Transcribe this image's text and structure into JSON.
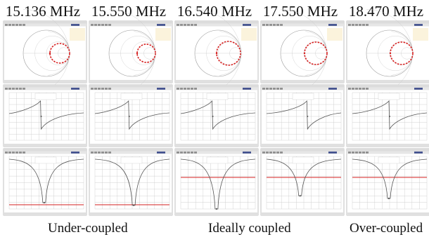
{
  "frequencies": [
    "15.136 MHz",
    "15.550 MHz",
    "16.540 MHz",
    "17.550 MHz",
    "18.470 MHz"
  ],
  "captions": {
    "under": "Under-coupled",
    "ideal": "Ideally coupled",
    "over": "Over-coupled"
  },
  "colors": {
    "window_bg": "#ffffff",
    "title_bar": "#dcdcdc",
    "toolbar": "#e6e6e6",
    "grid": "#c8c8c8",
    "trace": "#555555",
    "red_marker": "#d62020",
    "status_bar": "#e0e0e0"
  },
  "icons": {
    "window_menu": "menu-bar-icon",
    "toolbar_buttons": "toolbar-button-icon"
  }
}
